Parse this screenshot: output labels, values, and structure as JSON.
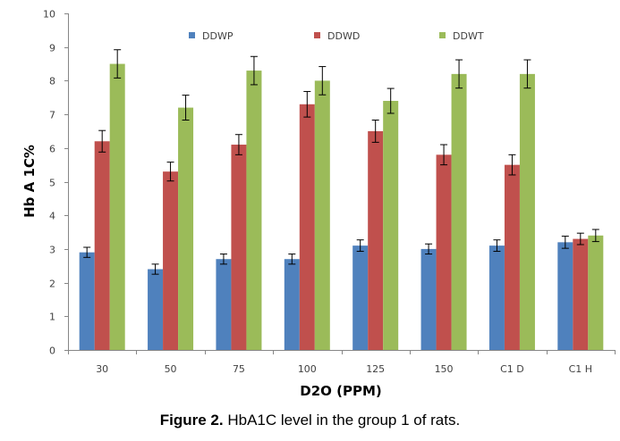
{
  "chart_data": {
    "type": "bar",
    "title": "",
    "xlabel": "D2O (PPM)",
    "ylabel": "Hb A 1C%",
    "ylim": [
      0,
      10
    ],
    "yticks": [
      "0",
      "1",
      "2",
      "3",
      "4",
      "5",
      "6",
      "7",
      "8",
      "9",
      "10"
    ],
    "categories": [
      "30",
      "50",
      "75",
      "100",
      "125",
      "150",
      "C1 D",
      "C1 H"
    ],
    "legend_position": "top",
    "grid": false,
    "series": [
      {
        "name": "DDWP",
        "color": "#4f81bd",
        "values": [
          2.9,
          2.4,
          2.7,
          2.7,
          3.1,
          3.0,
          3.1,
          3.2
        ],
        "errors": [
          0.15,
          0.15,
          0.15,
          0.15,
          0.17,
          0.15,
          0.17,
          0.18
        ]
      },
      {
        "name": "DDWD",
        "color": "#c0504d",
        "values": [
          6.2,
          5.3,
          6.1,
          7.3,
          6.5,
          5.8,
          5.5,
          3.3
        ],
        "errors": [
          0.32,
          0.28,
          0.3,
          0.38,
          0.33,
          0.3,
          0.3,
          0.17
        ]
      },
      {
        "name": "DDWT",
        "color": "#9bbb59",
        "values": [
          8.5,
          7.2,
          8.3,
          8.0,
          7.4,
          8.2,
          8.2,
          3.4
        ],
        "errors": [
          0.42,
          0.37,
          0.42,
          0.42,
          0.37,
          0.42,
          0.42,
          0.18
        ]
      }
    ]
  },
  "caption": {
    "label": "Figure 2.",
    "text": " HbA1C level in the group 1 of rats."
  }
}
